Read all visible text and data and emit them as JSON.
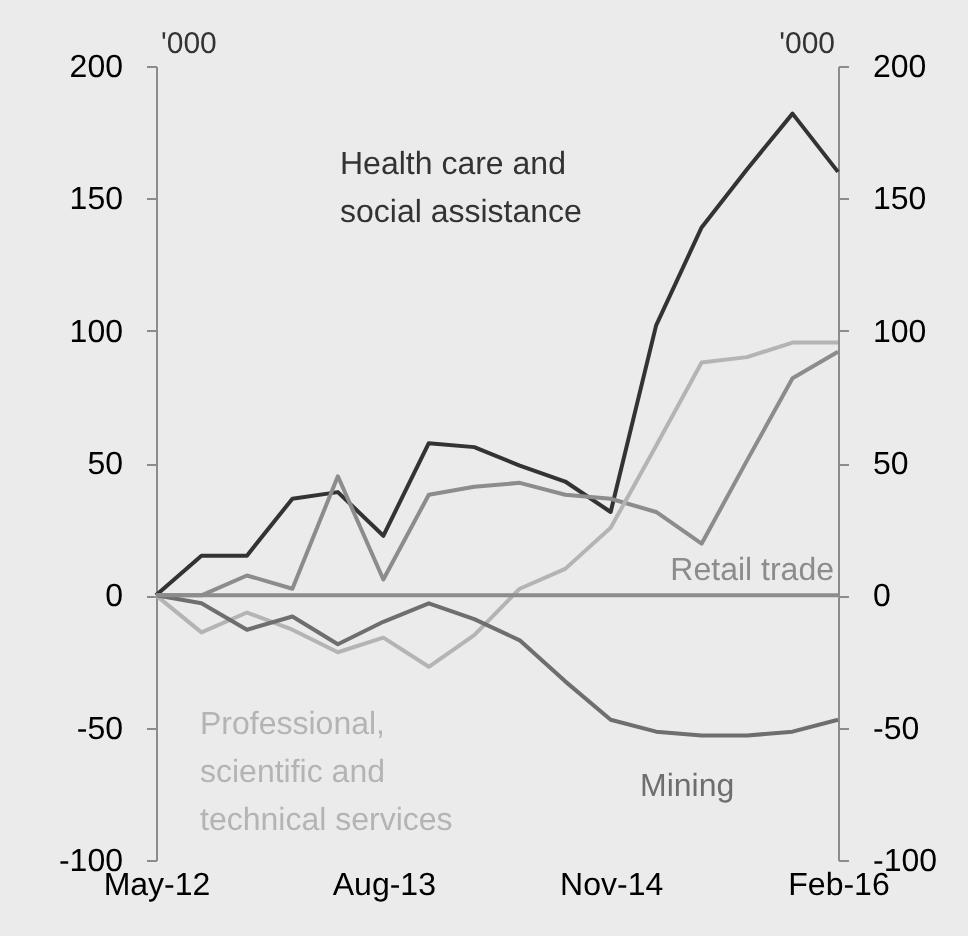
{
  "chart_data": {
    "type": "line",
    "categories": [
      "May-12",
      null,
      null,
      null,
      null,
      "Aug-13",
      null,
      null,
      null,
      null,
      "Nov-14",
      null,
      null,
      null,
      null,
      "Feb-16"
    ],
    "series": [
      {
        "name": "Health care and\nsocial assistance",
        "color": "#333333",
        "values": [
          0,
          15,
          15,
          36.5,
          39,
          22.5,
          57.5,
          56,
          49,
          43,
          31.5,
          102,
          139,
          161,
          182,
          160
        ]
      },
      {
        "name": "Retail trade",
        "color": "#8c8c8c",
        "values": [
          0,
          0,
          7.5,
          2.5,
          45,
          6,
          38,
          41,
          42.5,
          38,
          36.5,
          31.5,
          19.5,
          51,
          82,
          92
        ]
      },
      {
        "name": "Professional,\nscientific and\ntechnical services",
        "color": "#b4b4b4",
        "values": [
          0,
          -14,
          -6.5,
          -13,
          -21.5,
          -16,
          -27,
          -15,
          2.5,
          10,
          25.5,
          56.5,
          88,
          90,
          95.5,
          95.5
        ]
      },
      {
        "name": "Mining",
        "color": "#6e6e6e",
        "values": [
          0,
          -3,
          -13,
          -8,
          -18.5,
          -10,
          -3,
          -9,
          -17,
          -32.5,
          -47,
          -51.5,
          -53,
          -53,
          -51.5,
          -47
        ]
      }
    ],
    "ylabel": "'000",
    "y2label": "'000",
    "ylim": [
      -100,
      200
    ],
    "yticks": [
      -100,
      -50,
      0,
      50,
      100,
      150,
      200
    ],
    "y2lim": [
      -100,
      200
    ],
    "y2ticks": [
      -100,
      -50,
      0,
      50,
      100,
      150,
      200
    ],
    "ref_lines": [
      {
        "axis": "y",
        "value": 0,
        "color": "#8c8c8c"
      }
    ],
    "grid": false,
    "legend": false,
    "marker": "none",
    "line_style": "solid"
  }
}
